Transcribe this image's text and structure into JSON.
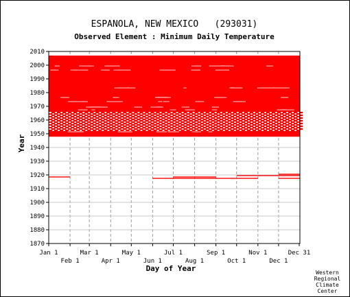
{
  "chart_data": {
    "type": "scatter",
    "title": "ESPANOLA, NEW MEXICO   (293031)",
    "subtitle": "Observed Element : Minimum Daily Temperature",
    "xlabel": "Day of Year",
    "ylabel": "Year",
    "xlim": [
      1,
      366
    ],
    "ylim": [
      1870,
      2010
    ],
    "yticks": [
      1870,
      1880,
      1890,
      1900,
      1910,
      1920,
      1930,
      1940,
      1950,
      1960,
      1970,
      1980,
      1990,
      2000,
      2010
    ],
    "x_ticks_upper": [
      {
        "label": "Jan 1",
        "day": 1
      },
      {
        "label": "Mar 1",
        "day": 60
      },
      {
        "label": "May 1",
        "day": 121
      },
      {
        "label": "Jul 1",
        "day": 182
      },
      {
        "label": "Sep 1",
        "day": 244
      },
      {
        "label": "Nov 1",
        "day": 305
      },
      {
        "label": "Dec 31",
        "day": 365
      }
    ],
    "x_ticks_lower": [
      {
        "label": "Feb 1",
        "day": 32
      },
      {
        "label": "Apr 1",
        "day": 91
      },
      {
        "label": "Jun 1",
        "day": 152
      },
      {
        "label": "Aug 1",
        "day": 213
      },
      {
        "label": "Oct 1",
        "day": 274
      },
      {
        "label": "Dec 1",
        "day": 335
      }
    ],
    "grid_x_days": [
      32,
      60,
      91,
      121,
      152,
      182,
      213,
      244,
      274,
      305,
      335
    ],
    "data_color": "#ff0000",
    "dense_block_years": [
      1948,
      2006
    ],
    "sparse_band_years": [
      1952,
      1965
    ],
    "blank_years_in_block": [
      1951,
      1967,
      1969,
      1973,
      1976,
      1983,
      1996,
      1999
    ],
    "early_segments": [
      {
        "year": 1918,
        "start_day": 1,
        "end_day": 32
      },
      {
        "year": 1917,
        "start_day": 152,
        "end_day": 182
      },
      {
        "year": 1917,
        "start_day": 182,
        "end_day": 244
      },
      {
        "year": 1918,
        "start_day": 182,
        "end_day": 244
      },
      {
        "year": 1917,
        "start_day": 244,
        "end_day": 274
      },
      {
        "year": 1917,
        "start_day": 274,
        "end_day": 305
      },
      {
        "year": 1919,
        "start_day": 274,
        "end_day": 305
      },
      {
        "year": 1919,
        "start_day": 305,
        "end_day": 335
      },
      {
        "year": 1917,
        "start_day": 335,
        "end_day": 366
      },
      {
        "year": 1919,
        "start_day": 335,
        "end_day": 366
      },
      {
        "year": 1920,
        "start_day": 335,
        "end_day": 366
      }
    ]
  },
  "credit_lines": [
    "Western",
    "Regional",
    "Climate",
    "Center"
  ]
}
